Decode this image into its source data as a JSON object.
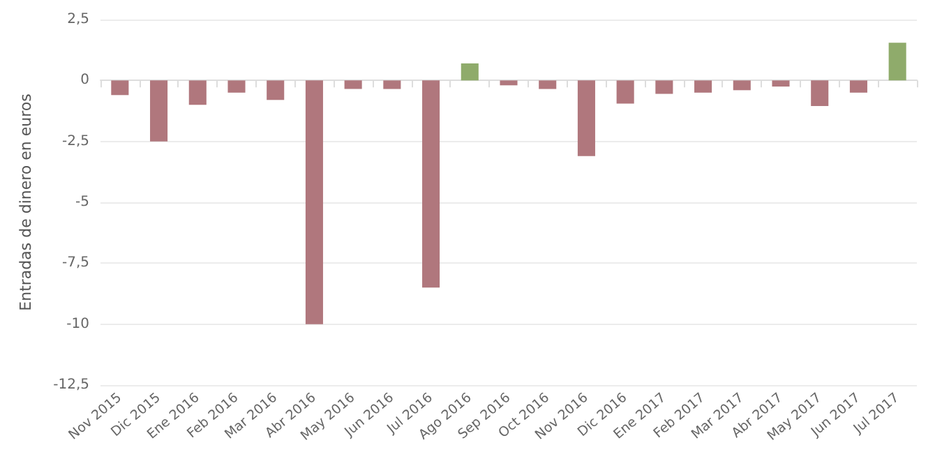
{
  "chart_data": {
    "type": "bar",
    "ylabel": "Entradas de dinero en euros",
    "categories": [
      "Nov 2015",
      "Dic 2015",
      "Ene 2016",
      "Feb 2016",
      "Mar 2016",
      "Abr 2016",
      "May 2016",
      "Jun 2016",
      "Jul 2016",
      "Ago 2016",
      "Sep 2016",
      "Oct 2016",
      "Nov 2016",
      "Dic 2016",
      "Ene 2017",
      "Feb 2017",
      "Mar 2017",
      "Abr 2017",
      "May 2017",
      "Jun 2017",
      "Jul 2017"
    ],
    "values": [
      -0.6,
      -2.5,
      -1.0,
      -0.5,
      -0.8,
      -10,
      -0.35,
      -0.35,
      -8.5,
      0.7,
      -0.2,
      -0.35,
      -3.1,
      -0.95,
      -0.55,
      -0.5,
      -0.4,
      -0.25,
      -1.05,
      -0.5,
      1.55
    ],
    "colors": [
      "#b0777d",
      "#b0777d",
      "#b0777d",
      "#b0777d",
      "#b0777d",
      "#b0777d",
      "#b0777d",
      "#b0777d",
      "#b0777d",
      "#8fab6b",
      "#b0777d",
      "#b0777d",
      "#b0777d",
      "#b0777d",
      "#b0777d",
      "#b0777d",
      "#b0777d",
      "#b0777d",
      "#b0777d",
      "#b0777d",
      "#8fab6b"
    ],
    "ylim": [
      -12.5,
      2.5
    ],
    "yticks": [
      {
        "value": -12.5,
        "label": "-12,5"
      },
      {
        "value": -10,
        "label": "-10"
      },
      {
        "value": -7.5,
        "label": "-7,5"
      },
      {
        "value": -5,
        "label": "-5"
      },
      {
        "value": -2.5,
        "label": "-2,5"
      },
      {
        "value": 0,
        "label": "0"
      },
      {
        "value": 2.5,
        "label": "2,5"
      }
    ],
    "grid": "y"
  }
}
